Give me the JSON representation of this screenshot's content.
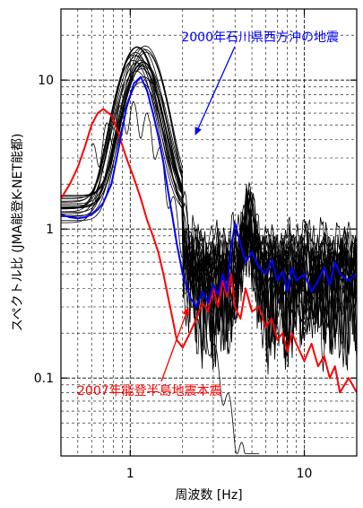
{
  "chart_data": {
    "type": "line",
    "title": "",
    "xlabel": "周波数 [Hz]",
    "ylabel": "スペクトル比 (JMA能登K-NET能都)",
    "xscale": "log",
    "yscale": "log",
    "xlim": [
      0.4,
      20
    ],
    "ylim": [
      0.03,
      30
    ],
    "grid": true,
    "xticks": [
      {
        "v": 1,
        "label": "1"
      },
      {
        "v": 10,
        "label": "10"
      }
    ],
    "yticks": [
      {
        "v": 0.1,
        "label": "0.1"
      },
      {
        "v": 1,
        "label": "1"
      },
      {
        "v": 10,
        "label": "10"
      }
    ],
    "series": [
      {
        "name": "2007年能登半島地震本震",
        "color": "#ff0000",
        "x": [
          0.4,
          0.45,
          0.5,
          0.55,
          0.6,
          0.65,
          0.7,
          0.78,
          0.85,
          0.95,
          1.05,
          1.15,
          1.25,
          1.35,
          1.45,
          1.55,
          1.65,
          1.75,
          1.85,
          2.0,
          2.2,
          2.4,
          2.6,
          2.8,
          3.0,
          3.2,
          3.4,
          3.6,
          3.8,
          4.0,
          4.3,
          4.6,
          5.0,
          5.5,
          6.0,
          6.5,
          7.0,
          7.5,
          8.0,
          8.5,
          9.0,
          10.0,
          11.0,
          12.0,
          13.0,
          14.0,
          15.0,
          16.0,
          18.0,
          20.0
        ],
        "y": [
          1.6,
          2.0,
          2.6,
          3.6,
          5.0,
          6.0,
          6.4,
          5.8,
          4.5,
          3.0,
          2.2,
          1.6,
          1.15,
          0.9,
          0.7,
          0.5,
          0.35,
          0.25,
          0.18,
          0.16,
          0.2,
          0.25,
          0.32,
          0.28,
          0.4,
          0.3,
          0.45,
          0.35,
          0.5,
          0.3,
          0.25,
          0.4,
          0.28,
          0.3,
          0.22,
          0.25,
          0.18,
          0.2,
          0.15,
          0.2,
          0.17,
          0.13,
          0.17,
          0.12,
          0.14,
          0.1,
          0.12,
          0.08,
          0.1,
          0.08
        ]
      },
      {
        "name": "2000年石川県西方沖の地震",
        "color": "#0000ff",
        "x": [
          0.4,
          0.45,
          0.5,
          0.55,
          0.6,
          0.65,
          0.7,
          0.78,
          0.85,
          0.95,
          1.05,
          1.15,
          1.25,
          1.35,
          1.45,
          1.55,
          1.65,
          1.75,
          1.85,
          2.0,
          2.2,
          2.4,
          2.6,
          2.8,
          3.0,
          3.2,
          3.4,
          3.6,
          3.8,
          4.0,
          4.3,
          4.6,
          5.0,
          5.5,
          6.0,
          6.5,
          7.0,
          7.5,
          8.0,
          8.5,
          9.0,
          10.0,
          11.0,
          12.0,
          13.0,
          14.0,
          15.0,
          16.0,
          18.0,
          20.0
        ],
        "y": [
          1.25,
          1.2,
          1.18,
          1.2,
          1.25,
          1.35,
          1.5,
          2.0,
          3.3,
          6.5,
          9.5,
          10.5,
          8.5,
          6.0,
          4.2,
          2.8,
          1.8,
          1.2,
          0.8,
          0.5,
          0.35,
          0.3,
          0.38,
          0.32,
          0.42,
          0.36,
          0.5,
          0.38,
          0.75,
          1.1,
          0.8,
          0.6,
          0.7,
          0.55,
          0.5,
          0.62,
          0.45,
          0.52,
          0.38,
          0.55,
          0.45,
          0.5,
          0.38,
          0.45,
          0.55,
          0.42,
          0.6,
          0.5,
          0.45,
          0.5
        ]
      }
    ],
    "other_records_color": "#000000",
    "annotations": [
      {
        "text": "2000年石川県西方沖の地震",
        "color": "#0000ff",
        "arrow_to": {
          "x": 1.55,
          "y": 4.0
        }
      },
      {
        "text": "2007年能登半島地震本震",
        "color": "#ff0000",
        "arrow_to": {
          "x": 1.9,
          "y": 0.32
        }
      }
    ]
  }
}
